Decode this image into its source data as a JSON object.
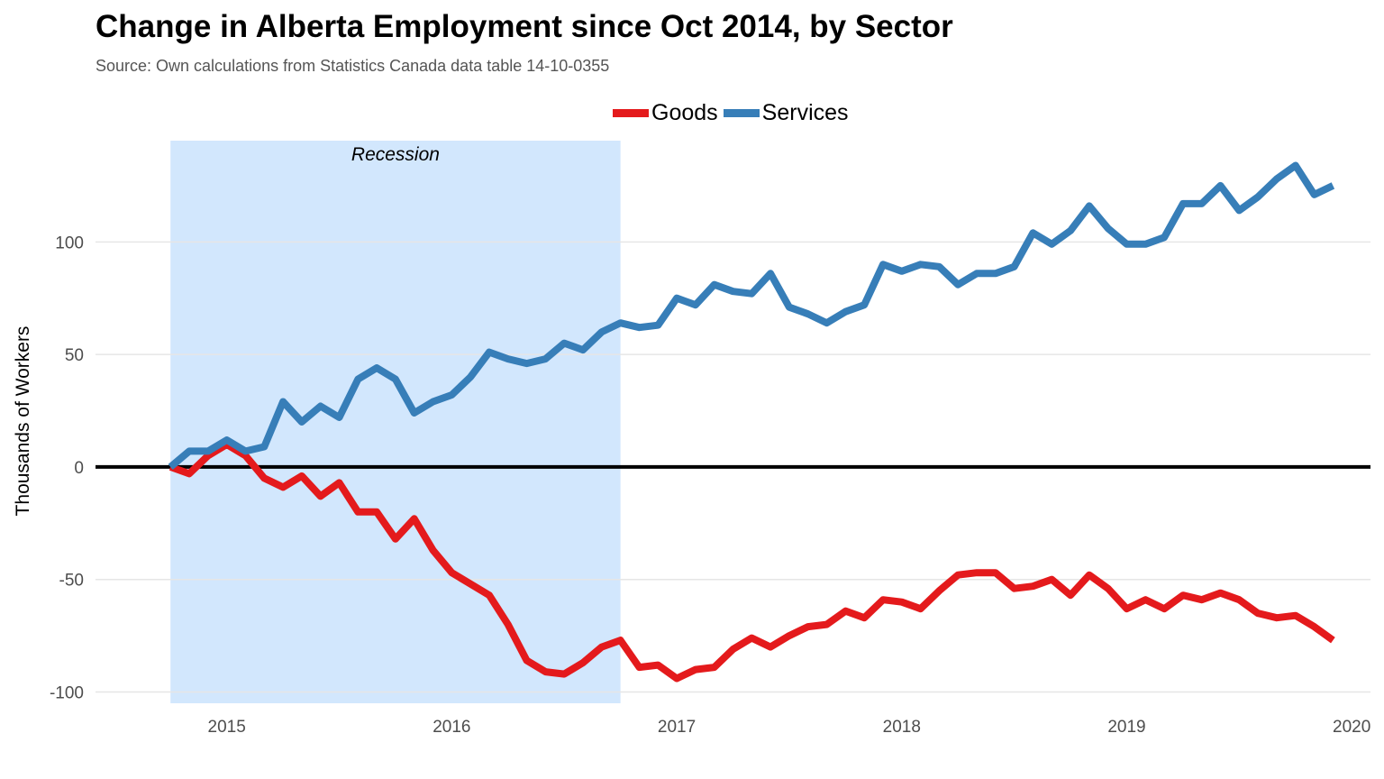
{
  "chart_data": {
    "type": "line",
    "title": "Change in Alberta Employment since Oct 2014, by Sector",
    "subtitle": "Source: Own calculations from Statistics Canada data table 14-10-0355",
    "ylabel": "Thousands of Workers",
    "xlabel": "",
    "x_ticks": [
      "2015",
      "2016",
      "2017",
      "2018",
      "2019",
      "2020"
    ],
    "y_ticks": [
      -100,
      -50,
      0,
      50,
      100
    ],
    "ylim": [
      -105,
      145
    ],
    "xlim": [
      "2014-06",
      "2020-02"
    ],
    "x_start": "2014-10",
    "x_step": "1 month",
    "legend_position": "top",
    "grid": "horizontal major only",
    "zero_line": true,
    "annotation": {
      "label": "Recession",
      "x_start": "2014-10",
      "x_end": "2016-10"
    },
    "series": [
      {
        "name": "Goods",
        "color": "#e41a1c",
        "values": [
          0,
          -3,
          5,
          10,
          5,
          -5,
          -9,
          -4,
          -13,
          -7,
          -20,
          -20,
          -32,
          -23,
          -37,
          -47,
          -52,
          -57,
          -70,
          -86,
          -91,
          -92,
          -87,
          -80,
          -77,
          -89,
          -88,
          -94,
          -90,
          -89,
          -81,
          -76,
          -80,
          -75,
          -71,
          -70,
          -64,
          -67,
          -59,
          -60,
          -63,
          -55,
          -48,
          -47,
          -47,
          -54,
          -53,
          -50,
          -57,
          -48,
          -54,
          -63,
          -59,
          -63,
          -57,
          -59,
          -56,
          -59,
          -65,
          -67,
          -66,
          -71,
          -77
        ]
      },
      {
        "name": "Services",
        "color": "#377eb8",
        "values": [
          0,
          7,
          7,
          12,
          7,
          9,
          29,
          20,
          27,
          22,
          39,
          44,
          39,
          24,
          29,
          32,
          40,
          51,
          48,
          46,
          48,
          55,
          52,
          60,
          64,
          62,
          63,
          75,
          72,
          81,
          78,
          77,
          86,
          71,
          68,
          64,
          69,
          72,
          90,
          87,
          90,
          89,
          81,
          86,
          86,
          89,
          104,
          99,
          105,
          116,
          106,
          99,
          99,
          102,
          117,
          117,
          125,
          114,
          120,
          128,
          134,
          121,
          125
        ]
      }
    ]
  }
}
